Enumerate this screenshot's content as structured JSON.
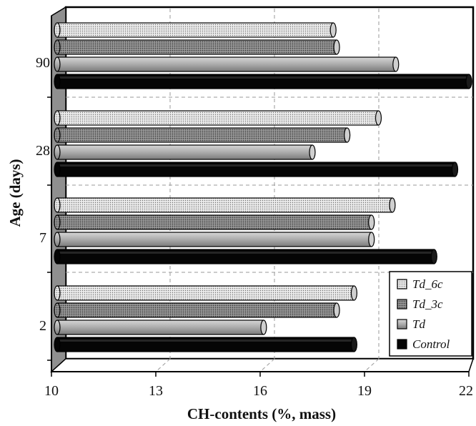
{
  "chart_data": {
    "type": "bar",
    "orientation": "horizontal",
    "xlabel": "CH-contents (%, mass)",
    "ylabel": "Age (days)",
    "xlim": [
      10,
      22
    ],
    "xticks": [
      "10",
      "13",
      "16",
      "19",
      "22"
    ],
    "categories": [
      "2",
      "7",
      "28",
      "90"
    ],
    "series": [
      {
        "name": "Control",
        "values": [
          18.7,
          21.0,
          21.6,
          22.0
        ],
        "color": "#000000"
      },
      {
        "name": "Td",
        "values": [
          16.1,
          19.2,
          17.5,
          19.9
        ],
        "color": "#b3b3b3"
      },
      {
        "name": "Td_3c",
        "values": [
          18.2,
          19.2,
          18.5,
          18.2
        ],
        "color": "#8c8c8c"
      },
      {
        "name": "Td_6c",
        "values": [
          18.7,
          19.8,
          19.4,
          18.1
        ],
        "color": "#e6e6e6"
      }
    ],
    "legend_position": "bottom-right",
    "legend_order": [
      "Td_6c",
      "Td_3c",
      "Td",
      "Control"
    ],
    "grid": true,
    "style": "3d"
  }
}
